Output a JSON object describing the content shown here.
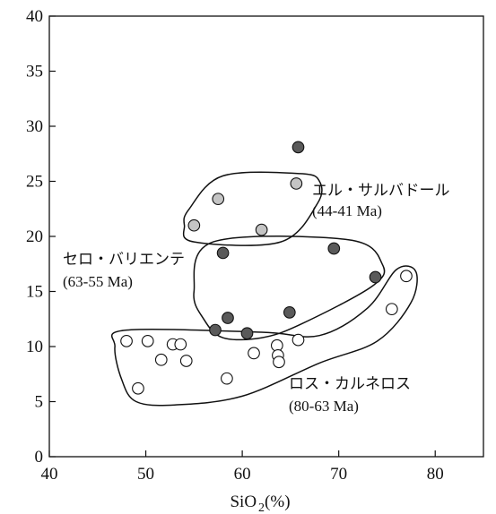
{
  "chart_data": {
    "type": "scatter",
    "title": "",
    "xlabel": "SiO₂(%)",
    "xlabel_main": "SiO",
    "xlabel_sub": "2",
    "xlabel_tail": "(%)",
    "ylabel": "",
    "xlim": [
      40,
      85
    ],
    "ylim": [
      0,
      40
    ],
    "x_ticks": [
      40,
      50,
      60,
      70,
      80
    ],
    "y_ticks": [
      0,
      5,
      10,
      15,
      20,
      25,
      30,
      35,
      40
    ],
    "grid": false,
    "groups": [
      {
        "id": "el-salvador",
        "name": "エル・サルバドール",
        "age": "(44-41 Ma)",
        "marker": "light-gray-circle",
        "points": [
          {
            "x": 55.0,
            "y": 21.0
          },
          {
            "x": 57.5,
            "y": 23.4
          },
          {
            "x": 62.0,
            "y": 20.6
          },
          {
            "x": 65.6,
            "y": 24.8
          }
        ],
        "outline": [
          {
            "x": 58.0,
            "y": 25.5
          },
          {
            "x": 66.0,
            "y": 25.7
          },
          {
            "x": 68.0,
            "y": 25.0
          },
          {
            "x": 67.8,
            "y": 23.0
          },
          {
            "x": 64.0,
            "y": 19.5
          },
          {
            "x": 55.0,
            "y": 19.5
          },
          {
            "x": 54.0,
            "y": 21.0
          },
          {
            "x": 54.5,
            "y": 22.5
          }
        ]
      },
      {
        "id": "cerro-verde",
        "name": "セロ・バリエンテ",
        "age": "(63-55 Ma)",
        "marker": "dark-gray-circle",
        "points": [
          {
            "x": 65.8,
            "y": 28.1
          },
          {
            "x": 58.0,
            "y": 18.5
          },
          {
            "x": 69.5,
            "y": 18.9
          },
          {
            "x": 73.8,
            "y": 16.3
          },
          {
            "x": 58.5,
            "y": 12.6
          },
          {
            "x": 57.2,
            "y": 11.5
          },
          {
            "x": 60.5,
            "y": 11.2
          },
          {
            "x": 64.9,
            "y": 13.1
          }
        ],
        "outline": [
          {
            "x": 57.0,
            "y": 19.5
          },
          {
            "x": 71.0,
            "y": 19.7
          },
          {
            "x": 74.5,
            "y": 17.5
          },
          {
            "x": 73.5,
            "y": 15.5
          },
          {
            "x": 66.0,
            "y": 12.0
          },
          {
            "x": 62.0,
            "y": 10.8
          },
          {
            "x": 58.0,
            "y": 10.8
          },
          {
            "x": 56.0,
            "y": 12.5
          },
          {
            "x": 55.0,
            "y": 15.0
          }
        ]
      },
      {
        "id": "los-carneros",
        "name": "ロス・カルネロス",
        "age": "(80-63 Ma)",
        "marker": "open-circle",
        "points": [
          {
            "x": 48.0,
            "y": 10.5
          },
          {
            "x": 50.2,
            "y": 10.5
          },
          {
            "x": 52.8,
            "y": 10.2
          },
          {
            "x": 53.6,
            "y": 10.2
          },
          {
            "x": 51.6,
            "y": 8.8
          },
          {
            "x": 54.2,
            "y": 8.7
          },
          {
            "x": 49.2,
            "y": 6.2
          },
          {
            "x": 58.4,
            "y": 7.1
          },
          {
            "x": 61.2,
            "y": 9.4
          },
          {
            "x": 63.6,
            "y": 10.1
          },
          {
            "x": 65.8,
            "y": 10.6
          },
          {
            "x": 63.7,
            "y": 9.2
          },
          {
            "x": 63.8,
            "y": 8.6
          },
          {
            "x": 75.5,
            "y": 13.4
          },
          {
            "x": 77.0,
            "y": 16.4
          }
        ],
        "outline": [
          {
            "x": 48.0,
            "y": 11.5
          },
          {
            "x": 62.0,
            "y": 11.3
          },
          {
            "x": 68.0,
            "y": 11.0
          },
          {
            "x": 73.0,
            "y": 13.5
          },
          {
            "x": 76.0,
            "y": 17.0
          },
          {
            "x": 78.0,
            "y": 16.8
          },
          {
            "x": 77.5,
            "y": 14.0
          },
          {
            "x": 74.0,
            "y": 10.5
          },
          {
            "x": 68.0,
            "y": 8.5
          },
          {
            "x": 60.0,
            "y": 5.5
          },
          {
            "x": 53.0,
            "y": 4.7
          },
          {
            "x": 49.0,
            "y": 5.0
          },
          {
            "x": 47.5,
            "y": 7.0
          },
          {
            "x": 46.8,
            "y": 10.0
          }
        ]
      }
    ]
  },
  "colors": {
    "light_marker": "#c4c4c4",
    "dark_marker": "#5a5a5a",
    "open_marker": "#ffffff",
    "stroke": "#111111"
  }
}
